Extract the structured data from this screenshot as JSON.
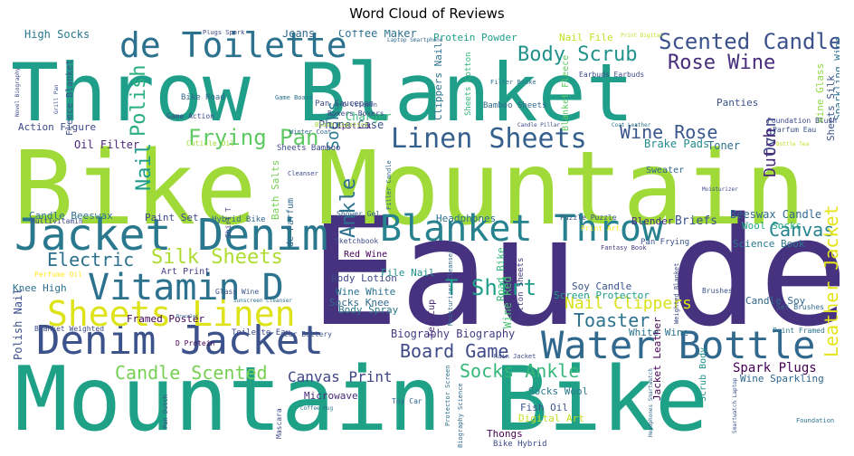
{
  "chart_data": {
    "type": "wordcloud",
    "title": "Word Cloud of Reviews",
    "background": "#ffffff",
    "palette": "viridis",
    "words": [
      {
        "text": "Eau de",
        "color": "#46327e"
      },
      {
        "text": "Bike Mountain",
        "color": "#a0da39"
      },
      {
        "text": "Mountain Bike",
        "color": "#1fa187"
      },
      {
        "text": "Throw Blanket",
        "color": "#1f9e89"
      },
      {
        "text": "Jacket Denim",
        "color": "#2a788e"
      },
      {
        "text": "Denim Jacket",
        "color": "#3b528b"
      },
      {
        "text": "Water Bottle",
        "color": "#31688e"
      },
      {
        "text": "Blanket Throw",
        "color": "#26828e"
      },
      {
        "text": "Vitamin D",
        "color": "#2c728e"
      },
      {
        "text": "de Toilette",
        "color": "#2c728e"
      },
      {
        "text": "Sheets Linen",
        "color": "#dde318"
      },
      {
        "text": "Linen Sheets",
        "color": "#355f8d"
      },
      {
        "text": "Scented Candle",
        "color": "#3b528b"
      },
      {
        "text": "Rose Wine",
        "color": "#472d7b"
      },
      {
        "text": "Body Scrub",
        "color": "#21918c"
      },
      {
        "text": "Wine Rose",
        "color": "#39568c"
      },
      {
        "text": "Frying Pan",
        "color": "#5ec962"
      },
      {
        "text": "Silk Sheets",
        "color": "#addc30"
      },
      {
        "text": "Electric",
        "color": "#2d708e"
      },
      {
        "text": "T Shirt",
        "color": "#1f9e89"
      },
      {
        "text": "Toaster",
        "color": "#2c728e"
      },
      {
        "text": "Board Game",
        "color": "#3e4989"
      },
      {
        "text": "Candle Scented",
        "color": "#75d054"
      },
      {
        "text": "Canvas Print",
        "color": "#404688"
      },
      {
        "text": "Socks Ankle",
        "color": "#35b779"
      },
      {
        "text": "Canvas",
        "color": "#26828e"
      },
      {
        "text": "Nail Clippers",
        "color": "#d8e219"
      },
      {
        "text": "Spark Plugs",
        "color": "#440154"
      },
      {
        "text": "Leather Jacket",
        "color": "#e5e419"
      },
      {
        "text": "Polish",
        "color": "#29af7f"
      },
      {
        "text": "Nail",
        "color": "#1e9b8a"
      },
      {
        "text": "Ankle",
        "color": "#2d708e"
      },
      {
        "text": "Socks",
        "color": "#2a788e"
      },
      {
        "text": "Oven",
        "color": "#3e4989"
      },
      {
        "text": "Dutch",
        "color": "#482878"
      },
      {
        "text": "Beeswax Candle",
        "color": "#31688e"
      },
      {
        "text": "Science Book",
        "color": "#2a788e"
      },
      {
        "text": "Wool Socks",
        "color": "#22a884"
      },
      {
        "text": "Blender",
        "color": "#472d7b"
      },
      {
        "text": "Briefs",
        "color": "#3b528b"
      },
      {
        "text": "Headphones",
        "color": "#2c728e"
      },
      {
        "text": "High Socks",
        "color": "#2a788e"
      },
      {
        "text": "Jeans",
        "color": "#31688e"
      },
      {
        "text": "Coffee Maker",
        "color": "#2d708e"
      },
      {
        "text": "Protein Powder",
        "color": "#1f9e89"
      },
      {
        "text": "Nail File",
        "color": "#c2df23"
      },
      {
        "text": "Phone Case",
        "color": "#3b528b"
      },
      {
        "text": "Charger",
        "color": "#35b779"
      },
      {
        "text": "Action Figure",
        "color": "#3e4989"
      },
      {
        "text": "Oil Filter",
        "color": "#482878"
      },
      {
        "text": "Brake Pads",
        "color": "#228c8d"
      },
      {
        "text": "Toner",
        "color": "#2c728e"
      },
      {
        "text": "Panties",
        "color": "#3b528b"
      },
      {
        "text": "Sweater",
        "color": "#31688e"
      },
      {
        "text": "Candle Beeswax",
        "color": "#2c728e"
      },
      {
        "text": "Paint Set",
        "color": "#3e4989"
      },
      {
        "text": "Knee High",
        "color": "#2d708e"
      },
      {
        "text": "Art Print",
        "color": "#433e85"
      },
      {
        "text": "Perfume Oil",
        "color": "#fde725"
      },
      {
        "text": "Polish Nail",
        "color": "#3b528b"
      },
      {
        "text": "Framed Poster",
        "color": "#440154"
      },
      {
        "text": "Body Lotion",
        "color": "#3e4989"
      },
      {
        "text": "File Nail",
        "color": "#21918c"
      },
      {
        "text": "Wine White",
        "color": "#2c728e"
      },
      {
        "text": "Socks Knee",
        "color": "#31688e"
      },
      {
        "text": "Body Spray",
        "color": "#2a788e"
      },
      {
        "text": "Biography Biography",
        "color": "#433e85"
      },
      {
        "text": "Red Wine",
        "color": "#440154"
      },
      {
        "text": "Screen Protector",
        "color": "#1f9e89"
      },
      {
        "text": "Soy Candle",
        "color": "#3b528b"
      },
      {
        "text": "White Wine",
        "color": "#2c728e"
      },
      {
        "text": "Candle Soy",
        "color": "#31688e"
      },
      {
        "text": "Microwave",
        "color": "#482878"
      },
      {
        "text": "Socks Wool",
        "color": "#2a788e"
      },
      {
        "text": "Fish Oil",
        "color": "#3b528b"
      },
      {
        "text": "Digital Art",
        "color": "#c2df23"
      },
      {
        "text": "Thongs",
        "color": "#440154"
      },
      {
        "text": "Bike Hybrid",
        "color": "#3e4989"
      },
      {
        "text": "Wine Sparkling",
        "color": "#31688e"
      },
      {
        "text": "Bath Salts",
        "color": "#75d054"
      },
      {
        "text": "de Parfum",
        "color": "#31688e"
      },
      {
        "text": "Wine Glass",
        "color": "#8fd744"
      },
      {
        "text": "Sheets Silk",
        "color": "#3b528b"
      },
      {
        "text": "Sparkling Wine",
        "color": "#2c728e"
      },
      {
        "text": "Wine Red",
        "color": "#4ac16d"
      },
      {
        "text": "Road Bike",
        "color": "#35b779"
      },
      {
        "text": "Tea Cup",
        "color": "#482878"
      },
      {
        "text": "Clippers Nail",
        "color": "#2c728e"
      },
      {
        "text": "Jacket Leather",
        "color": "#440154"
      },
      {
        "text": "Scrub Body",
        "color": "#21918c"
      },
      {
        "text": "Sheets Bamboo",
        "color": "#3e4989"
      },
      {
        "text": "Lipstick",
        "color": "#482878"
      },
      {
        "text": "Pan Saucepan",
        "color": "#3e4989"
      },
      {
        "text": "Bamboo Sheets",
        "color": "#31688e"
      },
      {
        "text": "Sheets Cotton",
        "color": "#35b779"
      },
      {
        "text": "Cotton Sheets",
        "color": "#433e85"
      },
      {
        "text": "Blanket Fleece",
        "color": "#5ec962"
      },
      {
        "text": "Fleece Blanket",
        "color": "#3b528b"
      },
      {
        "text": "Bike Road",
        "color": "#31688e"
      },
      {
        "text": "Game Action",
        "color": "#3e4989"
      },
      {
        "text": "Cuticle Oil",
        "color": "#a0da39"
      },
      {
        "text": "Multivitamin",
        "color": "#3e4989"
      },
      {
        "text": "Hybrid Bike",
        "color": "#31688e"
      },
      {
        "text": "Glass Wine",
        "color": "#3b528b"
      },
      {
        "text": "Shirt T",
        "color": "#433e85"
      },
      {
        "text": "Puzzle Puzzle",
        "color": "#3b528b"
      },
      {
        "text": "Shower Gel",
        "color": "#31688e"
      },
      {
        "text": "Sketchbook",
        "color": "#3e4989"
      },
      {
        "text": "Fantasy Book",
        "color": "#433e85"
      },
      {
        "text": "Pan Frying",
        "color": "#3b528b"
      },
      {
        "text": "Print Art",
        "color": "#fde725"
      },
      {
        "text": "Car Battery",
        "color": "#3b528b"
      },
      {
        "text": "Toilette Eau",
        "color": "#3e4989"
      },
      {
        "text": "Blanket Weighted",
        "color": "#3e4989"
      },
      {
        "text": "D Protein",
        "color": "#440154"
      },
      {
        "text": "Sunscreen Cleanser",
        "color": "#2c728e"
      },
      {
        "text": "Moisturizer Cleanser",
        "color": "#31688e"
      },
      {
        "text": "Brushes",
        "color": "#3b528b"
      },
      {
        "text": "Set Brushes",
        "color": "#31688e"
      },
      {
        "text": "Print Framed",
        "color": "#2c728e"
      },
      {
        "text": "Weighted Blanket",
        "color": "#3e4989"
      },
      {
        "text": "Rain Jacket",
        "color": "#3e4989"
      },
      {
        "text": "Toy Car",
        "color": "#31688e"
      },
      {
        "text": "Mascara",
        "color": "#3e4989"
      },
      {
        "text": "Pan Dutch",
        "color": "#3b528b"
      },
      {
        "text": "Coffee Mug",
        "color": "#2c728e"
      },
      {
        "text": "Biography Science",
        "color": "#31688e"
      },
      {
        "text": "Protector Screen",
        "color": "#2c728e"
      },
      {
        "text": "Earbuds Earbuds",
        "color": "#3e4989"
      },
      {
        "text": "Filter Brake",
        "color": "#2c728e"
      },
      {
        "text": "Plugs Spark",
        "color": "#3e4989"
      },
      {
        "text": "Laptop Smartphone",
        "color": "#31688e"
      },
      {
        "text": "Print Digital",
        "color": "#c2df23"
      },
      {
        "text": "Foundation Blush",
        "color": "#3e4989"
      },
      {
        "text": "Parfum Eau",
        "color": "#3b528b"
      },
      {
        "text": "Bottle Tea",
        "color": "#c2df23"
      },
      {
        "text": "Boxers Boxers",
        "color": "#3e4989"
      },
      {
        "text": "D Vitamin",
        "color": "#3b528b"
      },
      {
        "text": "Game Board",
        "color": "#2c728e"
      },
      {
        "text": "Winter Coat",
        "color": "#31688e"
      },
      {
        "text": "Blush Lipstick",
        "color": "#a0da39"
      },
      {
        "text": "Cleanser",
        "color": "#3e4989"
      },
      {
        "text": "Filler Candle",
        "color": "#31688e"
      },
      {
        "text": "Candle Pillar",
        "color": "#3e4989"
      },
      {
        "text": "Coat Leather",
        "color": "#2c728e"
      },
      {
        "text": "Moisturizer",
        "color": "#3e4989"
      },
      {
        "text": "Foundation",
        "color": "#2c728e"
      },
      {
        "text": "Novel Biography",
        "color": "#3e4989"
      },
      {
        "text": "Grill Pan",
        "color": "#3b528b"
      },
      {
        "text": "Headphones Smartwatch",
        "color": "#31688e"
      },
      {
        "text": "Smartwatch Laptop",
        "color": "#3b528b"
      },
      {
        "text": "Bracelet",
        "color": "#31688e"
      }
    ]
  }
}
